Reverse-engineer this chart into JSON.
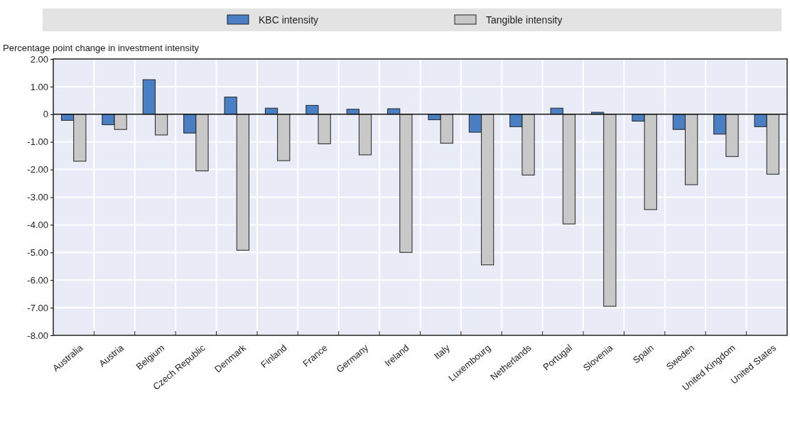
{
  "chart_data": {
    "type": "bar",
    "ylabel": "Percentage point change in investment intensity",
    "categories": [
      "Australia",
      "Austria",
      "Belgium",
      "Czech Republic",
      "Denmark",
      "Finland",
      "France",
      "Germany",
      "Ireland",
      "Italy",
      "Luxembourg",
      "Netherlands",
      "Portugal",
      "Slovenia",
      "Spain",
      "Sweden",
      "United Kingdom",
      "United States"
    ],
    "series": [
      {
        "name": "KBC intensity",
        "color": "#4a7fc4",
        "values": [
          -0.22,
          -0.38,
          1.25,
          -0.68,
          0.62,
          0.22,
          0.32,
          0.18,
          0.2,
          -0.2,
          -0.65,
          -0.45,
          0.22,
          0.07,
          -0.25,
          -0.55,
          -0.72,
          -0.45
        ]
      },
      {
        "name": "Tangible intensity",
        "color": "#c8c8c8",
        "values": [
          -1.7,
          -0.55,
          -0.75,
          -2.05,
          -4.92,
          -1.68,
          -1.07,
          -1.47,
          -5.0,
          -1.05,
          -5.45,
          -2.2,
          -3.97,
          -6.95,
          -3.45,
          -2.55,
          -1.53,
          -2.17
        ]
      }
    ],
    "ylim": [
      -8,
      2
    ],
    "yticks": [
      {
        "value": 2,
        "label": "2.00"
      },
      {
        "value": 1,
        "label": "1.00"
      },
      0,
      {
        "value": -1,
        "label": "-1.00"
      },
      {
        "value": -2,
        "label": "-2.00"
      },
      {
        "value": -3,
        "label": "-3.00"
      },
      {
        "value": -4,
        "label": "-4.00"
      },
      {
        "value": -5,
        "label": "-5.00"
      },
      {
        "value": -6,
        "label": "-6.00"
      },
      {
        "value": -7,
        "label": "-7.00"
      },
      {
        "value": -8,
        "label": "-8.00"
      }
    ],
    "grid": true,
    "legend": "top"
  }
}
